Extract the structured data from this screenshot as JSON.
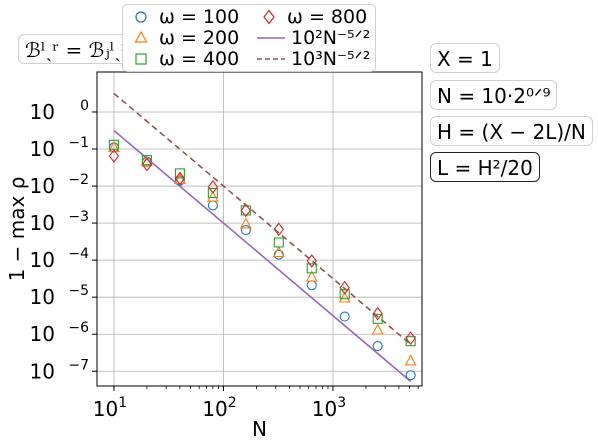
{
  "chart_data": {
    "type": "scatter",
    "xlabel": "N",
    "ylabel": "1 − max ρ",
    "xscale": "log",
    "yscale": "log",
    "xlim": [
      7,
      6500
    ],
    "ylim": [
      4e-08,
      12
    ],
    "x_ticks": [
      {
        "value": 10,
        "base": "10",
        "exp": "1"
      },
      {
        "value": 100,
        "base": "10",
        "exp": "2"
      },
      {
        "value": 1000,
        "base": "10",
        "exp": "3"
      }
    ],
    "y_ticks": [
      {
        "value": 1,
        "base": "10",
        "exp": "0"
      },
      {
        "value": 0.1,
        "base": "10",
        "exp": "−1"
      },
      {
        "value": 0.01,
        "base": "10",
        "exp": "−2"
      },
      {
        "value": 0.001,
        "base": "10",
        "exp": "−3"
      },
      {
        "value": 0.0001,
        "base": "10",
        "exp": "−4"
      },
      {
        "value": 1e-05,
        "base": "10",
        "exp": "−5"
      },
      {
        "value": 1e-06,
        "base": "10",
        "exp": "−6"
      },
      {
        "value": 1e-07,
        "base": "10",
        "exp": "−7"
      }
    ],
    "grid": true,
    "x": [
      10,
      20,
      40,
      80,
      160,
      320,
      640,
      1280,
      2560,
      5120
    ],
    "series": [
      {
        "name": "ω = 100",
        "marker": "circle",
        "color": "#1f77b4",
        "values": [
          0.11,
          0.045,
          0.014,
          0.003,
          0.00065,
          0.00014,
          2.1e-05,
          3e-06,
          4.8e-07,
          7.8e-08
        ]
      },
      {
        "name": "ω = 200",
        "marker": "triangle",
        "color": "#ff7f0e",
        "values": [
          0.11,
          0.045,
          0.015,
          0.005,
          0.00095,
          0.00016,
          3.5e-05,
          9.5e-06,
          1.3e-06,
          1.9e-07
        ]
      },
      {
        "name": "ω = 400",
        "marker": "square",
        "color": "#2ca02c",
        "values": [
          0.13,
          0.05,
          0.022,
          0.0065,
          0.0022,
          0.0003,
          6e-05,
          1.2e-05,
          2.6e-06,
          6.5e-07
        ]
      },
      {
        "name": "ω = 800",
        "marker": "diamond",
        "color": "#d62728",
        "values": [
          0.065,
          0.038,
          0.016,
          0.0095,
          0.0022,
          0.00068,
          9.5e-05,
          1.8e-05,
          3.6e-06,
          7.8e-07
        ]
      }
    ],
    "lines": [
      {
        "name": "10²N^(−5/2)",
        "coef": 100,
        "power": -2.5,
        "color": "#9467bd",
        "style": "solid"
      },
      {
        "name": "10³N^(−5/2)",
        "coef": 1000,
        "power": -2.5,
        "color": "#8c564b",
        "style": "dashed"
      }
    ],
    "legend_position": "top"
  },
  "annotations": {
    "bc": "ℬˡˏʳ = ℬⱼˡˏʳ",
    "x_def": "X = 1",
    "n_def": "N = 10·2⁰ᐟ⁹",
    "h_def": "H = (X − 2L)/N",
    "l_def": "L = H²/20"
  },
  "legend_labels": {
    "w100": "ω = 100",
    "w200": "ω = 200",
    "w400": "ω = 400",
    "w800": "ω = 800",
    "line1": "10²N⁻⁵ᐟ²",
    "line2": "10³N⁻⁵ᐟ²"
  }
}
